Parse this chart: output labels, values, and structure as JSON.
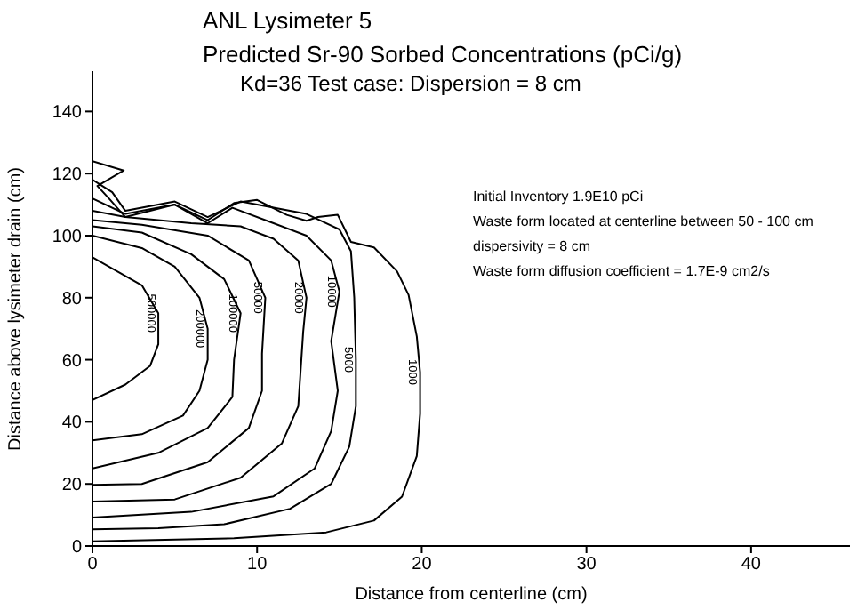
{
  "chart_data": {
    "type": "line",
    "title": "ANL Lysimeter 5\nPredicted Sr-90 Sorbed Concentrations (pCi/g)",
    "subtitle": "Kd=36 Test case:  Dispersion = 8 cm",
    "xlabel": "Distance from centerline (cm)",
    "ylabel": "Distance above lysimeter drain (cm)",
    "xlim": [
      0,
      46
    ],
    "ylim": [
      0,
      153
    ],
    "xticks": [
      0,
      10,
      20,
      30,
      40
    ],
    "yticks": [
      0,
      20,
      40,
      60,
      80,
      100,
      120,
      140
    ],
    "grid": false,
    "legend": false,
    "marker": "none",
    "line_style": "solid",
    "series": [
      {
        "name": "500000",
        "color": "#000000",
        "x": [
          0,
          3,
          4,
          4,
          3.5,
          2,
          0
        ],
        "values": [
          93,
          84,
          75,
          65,
          58,
          52,
          47
        ]
      },
      {
        "name": "200000",
        "color": "#000000",
        "x": [
          0,
          3,
          5,
          6.5,
          7,
          7,
          6.5,
          5.5,
          3,
          0
        ],
        "values": [
          100,
          96,
          90,
          80,
          70,
          60,
          50,
          42,
          36,
          34
        ]
      },
      {
        "name": "100000",
        "color": "#000000",
        "x": [
          0,
          3,
          6,
          8,
          9,
          8.6,
          8.5,
          7,
          4,
          0
        ],
        "values": [
          103,
          101,
          94,
          86,
          75,
          60,
          48,
          38,
          30,
          25
        ]
      },
      {
        "name": "50000",
        "color": "#000000",
        "x": [
          0,
          3,
          7,
          9.5,
          10.5,
          10.3,
          10.3,
          9.5,
          7,
          3,
          0
        ],
        "values": [
          105,
          103.5,
          100,
          92,
          80,
          62,
          50,
          38,
          27,
          20,
          19.7
        ]
      },
      {
        "name": "20000",
        "color": "#000000",
        "x": [
          0,
          2,
          6,
          9,
          11,
          12.5,
          13,
          12.8,
          12.5,
          11.5,
          9,
          5,
          0
        ],
        "values": [
          108,
          106,
          104,
          103,
          99,
          92,
          80,
          69,
          45,
          33,
          22,
          15,
          14.3
        ]
      },
      {
        "name": "10000",
        "color": "#000000",
        "x": [
          0,
          2,
          5,
          7,
          8.5,
          11,
          13,
          14.5,
          15,
          14.5,
          14.9,
          14.5,
          13.5,
          11,
          6,
          0
        ],
        "values": [
          112,
          107,
          110,
          104,
          109,
          104,
          100,
          92,
          82,
          66,
          50,
          37,
          25,
          16,
          11,
          9.2
        ]
      },
      {
        "name": "5000",
        "color": "#000000",
        "x": [
          0,
          1.2,
          2,
          5,
          7,
          9,
          11,
          13,
          15,
          15.7,
          15.9,
          16,
          16,
          15.6,
          14.5,
          12,
          8,
          4,
          0
        ],
        "values": [
          118,
          114,
          108,
          111,
          106,
          111,
          109,
          107,
          102,
          95,
          80,
          60,
          45,
          32,
          20,
          12,
          7,
          5.7,
          5.4
        ]
      },
      {
        "name": "1000",
        "color": "#000000",
        "x": [
          0,
          1.9,
          0.3,
          1,
          2,
          5,
          7,
          8.6,
          10,
          11.8,
          13,
          13.7,
          14.9,
          15.7,
          17.1,
          18.5,
          19.2,
          19.7,
          19.9,
          19.9,
          19.7,
          18.8,
          17.1,
          14.2,
          8.6,
          0
        ],
        "values": [
          124,
          121,
          116,
          112,
          106,
          110,
          105,
          110.5,
          111.5,
          106.7,
          104.8,
          106,
          106.7,
          98,
          96.2,
          88.5,
          80.9,
          67.5,
          56,
          42.6,
          29,
          15.9,
          8.2,
          4.4,
          2.5,
          1.5
        ]
      }
    ],
    "annotations": [
      "Initial Inventory 1.9E10 pCi",
      "Waste form located at centerline between 50 - 100 cm",
      "dispersivity = 8 cm",
      "Waste form diffusion coefficient = 1.7E-9 cm2/s"
    ]
  }
}
